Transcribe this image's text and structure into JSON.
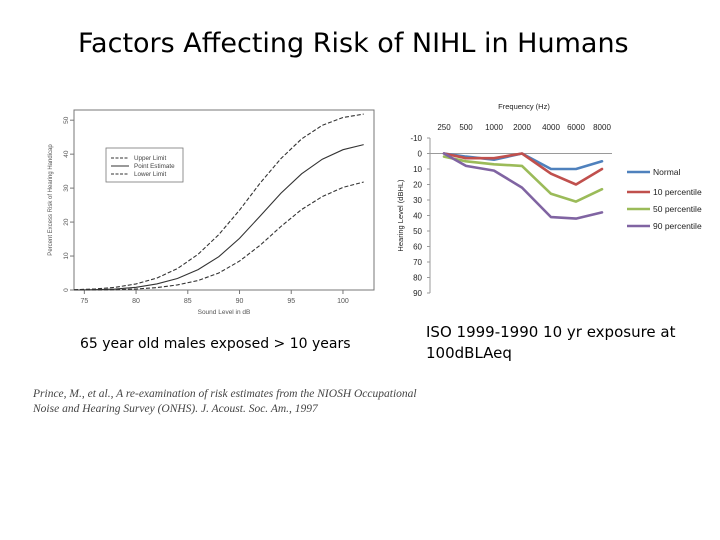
{
  "page": {
    "title": "Factors Affecting Risk of NIHL in Humans",
    "caption_left": "65 year old males exposed > 10 years",
    "caption_right_line1": "ISO 1999-1990 10 yr exposure at",
    "caption_right_line2": "100dBLAeq",
    "citation_line1": "Prince, M., et al., A re-examination of risk estimates from the NIOSH Occupational",
    "citation_line2": "Noise and Hearing Survey (ONHS). J. Acoust. Soc. Am., 1997"
  },
  "chart_data": [
    {
      "type": "line",
      "title": "",
      "xlabel": "Sound Level in dB",
      "ylabel": "Percent Excess Risk of Hearing Handicap",
      "x_ticks": [
        "75",
        "80",
        "85",
        "90",
        "95",
        "100"
      ],
      "y_ticks": [
        "0",
        "10",
        "20",
        "30",
        "40",
        "50"
      ],
      "xlim": [
        74,
        103
      ],
      "ylim": [
        0,
        53
      ],
      "legend_position": "top-left",
      "x": [
        74,
        76,
        78,
        80,
        82,
        84,
        86,
        88,
        90,
        92,
        94,
        96,
        98,
        100,
        102
      ],
      "series": [
        {
          "name": "Upper Limit",
          "dash": "dash",
          "values": [
            0.1,
            0.3,
            0.8,
            1.8,
            3.5,
            6.3,
            10.5,
            16.3,
            23.5,
            31.5,
            38.7,
            44.5,
            48.5,
            50.8,
            51.8
          ]
        },
        {
          "name": "Point Estimate",
          "dash": "solid",
          "values": [
            0,
            0.1,
            0.3,
            0.8,
            1.8,
            3.4,
            6,
            9.8,
            15.2,
            21.8,
            28.5,
            34.2,
            38.5,
            41.3,
            42.8
          ]
        },
        {
          "name": "Lower Limit",
          "dash": "dash",
          "values": [
            0,
            0,
            0.1,
            0.3,
            0.7,
            1.5,
            2.8,
            5,
            8.5,
            13.2,
            18.7,
            23.7,
            27.5,
            30.2,
            31.8
          ]
        }
      ]
    },
    {
      "type": "line",
      "title": "Frequency (Hz)",
      "xlabel": "",
      "ylabel": "Hearing Level (dBHL)",
      "categories": [
        "250",
        "500",
        "1000",
        "2000",
        "4000",
        "6000",
        "8000"
      ],
      "y_ticks": [
        "-10",
        "0",
        "10",
        "20",
        "30",
        "40",
        "50",
        "60",
        "70",
        "80",
        "90"
      ],
      "ylim": [
        -10,
        90
      ],
      "y_inverted": true,
      "legend_position": "right",
      "series": [
        {
          "name": "Normal",
          "color": "#4f81bd",
          "values": [
            0,
            2,
            4,
            0,
            10,
            10,
            5
          ]
        },
        {
          "name": "10 percentile",
          "color": "#c0504d",
          "values": [
            0,
            3,
            3,
            0,
            13,
            20,
            10
          ]
        },
        {
          "name": "50 percentile",
          "color": "#9bbb59",
          "values": [
            2,
            5,
            7,
            8,
            26,
            31,
            23
          ]
        },
        {
          "name": "90 percentile",
          "color": "#8064a2",
          "values": [
            0,
            8,
            11,
            22,
            41,
            42,
            38
          ]
        }
      ]
    }
  ]
}
